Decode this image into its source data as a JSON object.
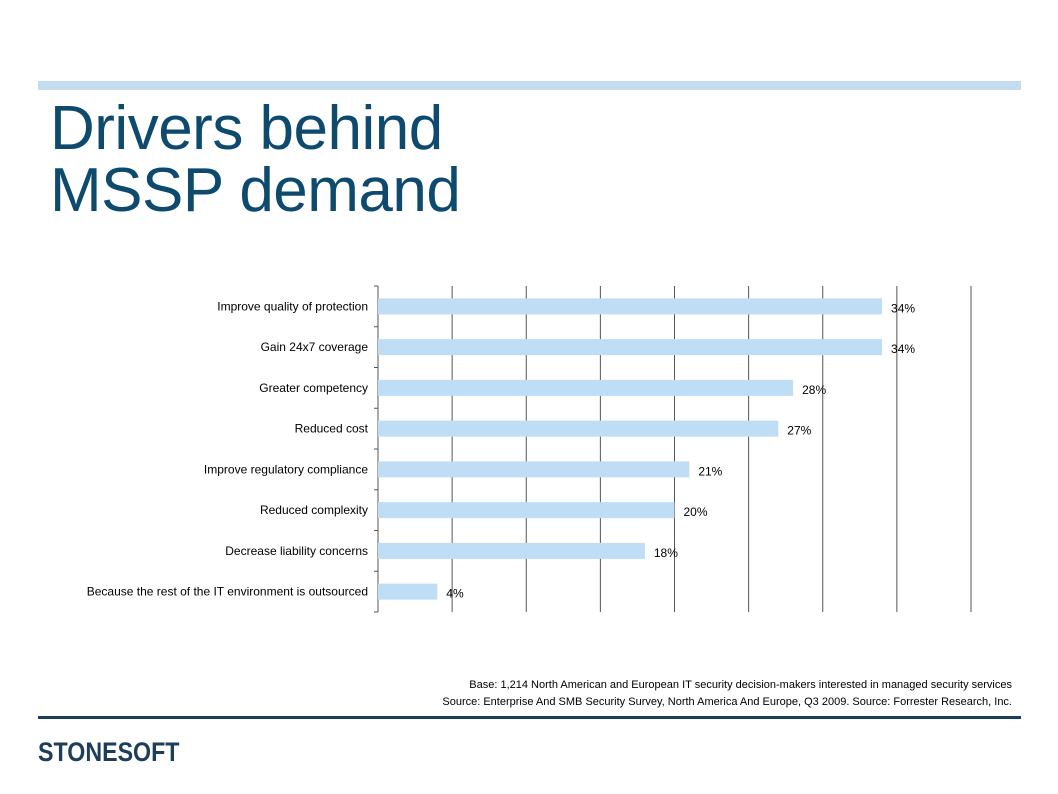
{
  "slide": {
    "title_line1": "Drivers behind",
    "title_line2": "MSSP demand",
    "footnote_line1": "Base: 1,214 North American and European IT security decision-makers interested in managed security services",
    "footnote_line2": "Source: Enterprise And SMB Security Survey, North America And Europe, Q3 2009. Source: Forrester Research, Inc.",
    "logo_text": "STONESOFT"
  },
  "colors": {
    "title": "#0d4a6e",
    "accent_rule": "#c4dcf0",
    "bar": "#bfddf4",
    "grid": "#555555",
    "bottom_rule": "#1a3f5c"
  },
  "chart_data": {
    "type": "bar",
    "orientation": "horizontal",
    "categories": [
      "Improve quality of protection",
      "Gain 24x7 coverage",
      "Greater competency",
      "Reduced cost",
      "Improve regulatory compliance",
      "Reduced complexity",
      "Decrease liability concerns",
      "Because the rest of the IT environment is outsourced"
    ],
    "values": [
      34,
      34,
      28,
      27,
      21,
      20,
      18,
      4
    ],
    "data_labels": [
      "34%",
      "34%",
      "28%",
      "27%",
      "21%",
      "20%",
      "18%",
      "4%"
    ],
    "xlim": [
      0,
      40
    ],
    "grid": true,
    "legend": false,
    "title": "",
    "xlabel": "",
    "ylabel": ""
  }
}
